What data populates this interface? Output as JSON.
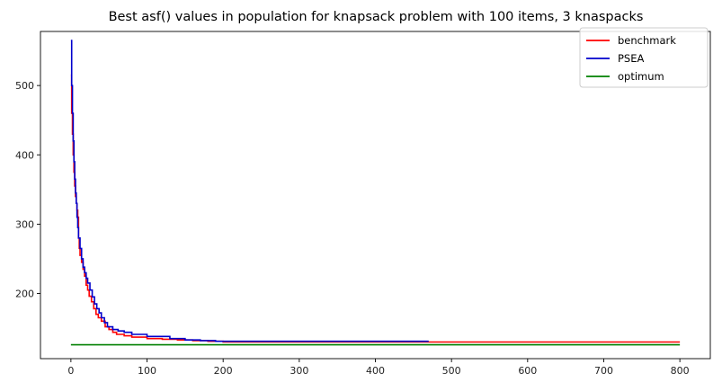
{
  "chart_data": {
    "type": "line",
    "title": "Best asf() values in population for knapsack problem with 100 items, 3 knaspacks",
    "xlabel": "",
    "ylabel": "",
    "xlim": [
      -40,
      840
    ],
    "ylim": [
      106,
      578
    ],
    "xticks": [
      0,
      100,
      200,
      300,
      400,
      500,
      600,
      700,
      800
    ],
    "yticks": [
      200,
      300,
      400,
      500
    ],
    "grid": false,
    "legend_position": "top-right",
    "series": [
      {
        "name": "benchmark",
        "color": "#ff0000",
        "step": true,
        "x": [
          0,
          1,
          2,
          3,
          4,
          5,
          6,
          7,
          8,
          9,
          10,
          11,
          12,
          14,
          16,
          18,
          20,
          22,
          24,
          27,
          30,
          33,
          36,
          40,
          45,
          50,
          55,
          60,
          70,
          80,
          100,
          120,
          140,
          160,
          180,
          200,
          800
        ],
        "y": [
          515,
          460,
          430,
          400,
          375,
          355,
          340,
          330,
          320,
          310,
          280,
          265,
          255,
          245,
          235,
          225,
          212,
          205,
          196,
          188,
          178,
          170,
          165,
          160,
          152,
          148,
          144,
          141,
          139,
          137,
          135,
          134,
          133,
          132,
          131,
          130,
          130
        ]
      },
      {
        "name": "PSEA",
        "color": "#0000cc",
        "step": true,
        "x": [
          0,
          1,
          2,
          3,
          4,
          5,
          6,
          7,
          8,
          9,
          10,
          12,
          14,
          16,
          18,
          20,
          22,
          25,
          28,
          31,
          34,
          37,
          40,
          44,
          48,
          55,
          62,
          70,
          80,
          100,
          130,
          150,
          170,
          190,
          470
        ],
        "y": [
          565,
          500,
          460,
          420,
          390,
          365,
          345,
          330,
          310,
          295,
          280,
          265,
          250,
          238,
          230,
          222,
          215,
          205,
          195,
          185,
          178,
          172,
          165,
          158,
          152,
          148,
          146,
          144,
          141,
          138,
          135,
          133,
          132,
          131,
          131
        ]
      },
      {
        "name": "optimum",
        "color": "#008000",
        "step": false,
        "x": [
          0,
          800
        ],
        "y": [
          126,
          126
        ]
      }
    ]
  }
}
